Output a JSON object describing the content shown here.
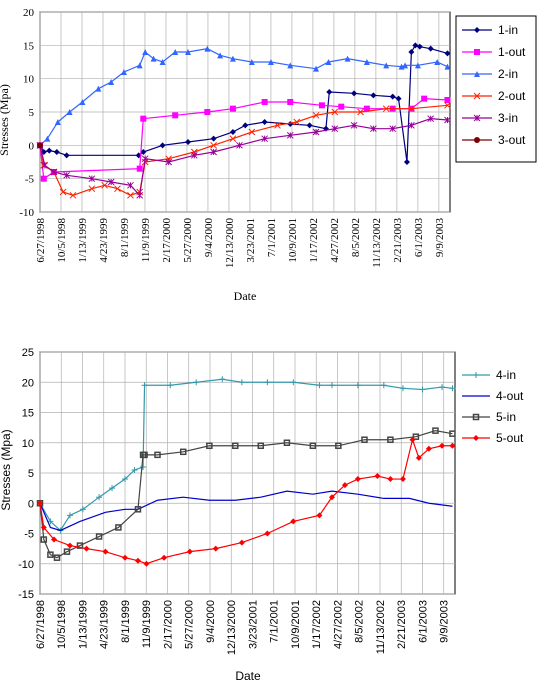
{
  "chart_data": [
    {
      "type": "line",
      "xlabel": "Date",
      "ylabel": "Stresses (Mpa)",
      "ylim": [
        -10,
        20
      ],
      "yticks": [
        -10,
        -5,
        0,
        5,
        10,
        15,
        20
      ],
      "xlim": [
        "1998-06-27",
        "2003-11-01"
      ],
      "xtick_labels": [
        "6/27/1998",
        "10/5/1998",
        "1/13/1999",
        "4/23/1999",
        "8/1/1999",
        "11/9/1999",
        "2/17/2000",
        "5/27/2000",
        "9/4/2000",
        "12/13/2000",
        "3/23/2001",
        "7/1/2001",
        "10/9/2001",
        "1/17/2002",
        "4/27/2002",
        "8/5/2002",
        "11/13/2002",
        "2/21/2003",
        "6/1/2003",
        "9/9/2003"
      ],
      "grid": true,
      "legend_position": "right",
      "series": [
        {
          "name": "1-in",
          "color": "#00007f",
          "marker": "diamond",
          "x": [
            "1998-06-27",
            "1998-07-15",
            "1998-08-10",
            "1998-09-15",
            "1998-11-01",
            "1999-10-10",
            "1999-11-01",
            "2000-02-01",
            "2000-06-01",
            "2000-10-01",
            "2001-01-01",
            "2001-03-01",
            "2001-06-01",
            "2001-10-01",
            "2002-01-01",
            "2002-03-20",
            "2002-04-05",
            "2002-08-01",
            "2002-11-01",
            "2003-02-01",
            "2003-03-01",
            "2003-04-10",
            "2003-05-01",
            "2003-05-20",
            "2003-06-10",
            "2003-08-01",
            "2003-10-20"
          ],
          "y": [
            0,
            -1,
            -0.8,
            -1,
            -1.5,
            -1.5,
            -1,
            0,
            0.5,
            1,
            2,
            3,
            3.5,
            3.2,
            3,
            2.5,
            8,
            7.8,
            7.5,
            7.3,
            7,
            -2.5,
            14,
            15,
            14.8,
            14.5,
            13.8
          ]
        },
        {
          "name": "1-out",
          "color": "#ff00ff",
          "marker": "square",
          "x": [
            "1998-06-27",
            "1998-07-15",
            "1998-09-01",
            "1999-10-15",
            "1999-11-01",
            "2000-04-01",
            "2000-09-01",
            "2001-01-01",
            "2001-06-01",
            "2001-10-01",
            "2002-03-01",
            "2002-06-01",
            "2002-10-01",
            "2003-02-01",
            "2003-05-01",
            "2003-07-01",
            "2003-10-20"
          ],
          "y": [
            0,
            -5,
            -4,
            -3.5,
            4,
            4.5,
            5,
            5.5,
            6.5,
            6.5,
            6,
            5.8,
            5.5,
            5.5,
            5.5,
            7,
            6.8
          ]
        },
        {
          "name": "2-in",
          "color": "#3366ff",
          "marker": "triangle",
          "x": [
            "1998-06-27",
            "1998-08-01",
            "1998-09-20",
            "1998-11-15",
            "1999-01-15",
            "1999-04-01",
            "1999-06-01",
            "1999-08-01",
            "1999-10-15",
            "1999-11-10",
            "1999-12-20",
            "2000-02-01",
            "2000-04-01",
            "2000-06-01",
            "2000-09-01",
            "2000-11-01",
            "2001-01-01",
            "2001-04-01",
            "2001-07-01",
            "2001-10-01",
            "2002-02-01",
            "2002-04-01",
            "2002-07-01",
            "2002-10-01",
            "2003-01-01",
            "2003-03-15",
            "2003-04-01",
            "2003-06-01",
            "2003-09-01",
            "2003-10-20"
          ],
          "y": [
            0,
            1,
            3.5,
            5,
            6.5,
            8.5,
            9.5,
            11,
            12,
            14,
            13,
            12.5,
            14,
            14,
            14.5,
            13.5,
            13,
            12.5,
            12.5,
            12,
            11.5,
            12.5,
            13,
            12.5,
            12,
            11.8,
            12,
            12,
            12.5,
            11.8
          ]
        },
        {
          "name": "2-out",
          "color": "#ff2200",
          "marker": "x",
          "x": [
            "1998-06-27",
            "1998-07-15",
            "1998-09-01",
            "1998-10-15",
            "1998-12-01",
            "1999-03-01",
            "1999-05-01",
            "1999-07-01",
            "1999-09-01",
            "1999-10-15",
            "1999-11-10",
            "2000-03-01",
            "2000-07-01",
            "2000-10-01",
            "2001-01-01",
            "2001-04-01",
            "2001-08-01",
            "2001-11-01",
            "2002-02-01",
            "2002-05-01",
            "2002-09-01",
            "2003-01-01",
            "2003-05-01",
            "2003-10-20"
          ],
          "y": [
            0,
            -3,
            -4,
            -7,
            -7.5,
            -6.5,
            -6,
            -6.5,
            -7.5,
            -7,
            -2.5,
            -2,
            -1,
            0,
            1,
            2,
            3,
            3.5,
            4.5,
            5,
            5,
            5.5,
            5.5,
            6
          ]
        },
        {
          "name": "3-in",
          "color": "#990099",
          "marker": "star",
          "x": [
            "1998-06-27",
            "1998-07-20",
            "1998-09-01",
            "1998-11-01",
            "1999-03-01",
            "1999-06-01",
            "1999-09-01",
            "1999-10-15",
            "1999-11-10",
            "2000-03-01",
            "2000-07-01",
            "2000-10-01",
            "2001-02-01",
            "2001-06-01",
            "2001-10-01",
            "2002-02-01",
            "2002-05-01",
            "2002-08-01",
            "2002-11-01",
            "2003-02-01",
            "2003-05-01",
            "2003-08-01",
            "2003-10-20"
          ],
          "y": [
            0,
            -3,
            -4,
            -4.5,
            -5,
            -5.5,
            -6,
            -7.5,
            -2,
            -2.5,
            -1.5,
            -1,
            0,
            1,
            1.5,
            2,
            2.5,
            3,
            2.5,
            2.5,
            3,
            4,
            3.8
          ]
        },
        {
          "name": "3-out",
          "color": "#7f0000",
          "marker": "circle",
          "x": [
            "1998-06-27"
          ],
          "y": [
            0
          ]
        }
      ]
    },
    {
      "type": "line",
      "xlabel": "Date",
      "ylabel": "Stresses (Mpa)",
      "ylim": [
        -15,
        25
      ],
      "yticks": [
        -15,
        -10,
        -5,
        0,
        5,
        10,
        15,
        20,
        25
      ],
      "xlim": [
        "1998-06-27",
        "2003-11-01"
      ],
      "xtick_labels": [
        "6/27/1998",
        "10/5/1998",
        "1/13/1999",
        "4/23/1999",
        "8/1/1999",
        "11/9/1999",
        "2/17/2000",
        "5/27/2000",
        "9/4/2000",
        "12/13/2000",
        "3/23/2001",
        "7/1/2001",
        "10/9/2001",
        "1/17/2002",
        "4/27/2002",
        "8/5/2002",
        "11/13/2002",
        "2/21/2003",
        "6/1/2003",
        "9/9/2003"
      ],
      "grid": true,
      "legend_position": "right",
      "series": [
        {
          "name": "4-in",
          "color": "#3399aa",
          "marker": "plus",
          "x": [
            "1998-06-27",
            "1998-08-15",
            "1998-10-01",
            "1998-11-15",
            "1999-01-15",
            "1999-04-01",
            "1999-06-01",
            "1999-08-01",
            "1999-09-15",
            "1999-10-25",
            "1999-11-01",
            "2000-03-01",
            "2000-07-01",
            "2000-11-01",
            "2001-02-01",
            "2001-06-01",
            "2001-10-01",
            "2002-02-01",
            "2002-04-01",
            "2002-08-01",
            "2002-12-01",
            "2003-03-01",
            "2003-06-01",
            "2003-09-01",
            "2003-10-20"
          ],
          "y": [
            0,
            -3,
            -4.5,
            -2,
            -1,
            1,
            2.5,
            4,
            5.5,
            6,
            19.5,
            19.5,
            20,
            20.5,
            20,
            20,
            20,
            19.5,
            19.5,
            19.5,
            19.5,
            19,
            18.8,
            19.2,
            19
          ]
        },
        {
          "name": "4-out",
          "color": "#0000cc",
          "marker": "none",
          "x": [
            "1998-06-27",
            "1998-08-15",
            "1998-10-01",
            "1999-01-01",
            "1999-05-01",
            "1999-08-01",
            "1999-10-01",
            "2000-01-01",
            "2000-05-01",
            "2000-09-01",
            "2001-01-01",
            "2001-05-01",
            "2001-09-01",
            "2002-01-01",
            "2002-04-01",
            "2002-08-01",
            "2002-12-01",
            "2003-04-01",
            "2003-07-01",
            "2003-10-20"
          ],
          "y": [
            0,
            -4,
            -4.5,
            -3,
            -1.5,
            -1,
            -1,
            0.5,
            1,
            0.5,
            0.5,
            1,
            2,
            1.5,
            2,
            1.5,
            0.8,
            0.8,
            0,
            -0.5
          ]
        },
        {
          "name": "5-in",
          "color": "#444444",
          "marker": "hash",
          "x": [
            "1998-06-27",
            "1998-07-15",
            "1998-08-15",
            "1998-09-15",
            "1998-11-01",
            "1999-01-01",
            "1999-04-01",
            "1999-07-01",
            "1999-10-01",
            "1999-10-25",
            "1999-11-01",
            "2000-01-01",
            "2000-05-01",
            "2000-09-01",
            "2001-01-01",
            "2001-05-01",
            "2001-09-01",
            "2002-01-01",
            "2002-05-01",
            "2002-09-01",
            "2003-01-01",
            "2003-05-01",
            "2003-08-01",
            "2003-10-20"
          ],
          "y": [
            0,
            -6,
            -8.5,
            -9,
            -8,
            -7,
            -5.5,
            -4,
            -1,
            8,
            8,
            8,
            8.5,
            9.5,
            9.5,
            9.5,
            10,
            9.5,
            9.5,
            10.5,
            10.5,
            11,
            12,
            11.5
          ]
        },
        {
          "name": "5-out",
          "color": "#ff0000",
          "marker": "diamond",
          "x": [
            "1998-06-27",
            "1998-07-15",
            "1998-09-01",
            "1998-11-15",
            "1999-02-01",
            "1999-05-01",
            "1999-08-01",
            "1999-10-01",
            "1999-11-10",
            "2000-02-01",
            "2000-06-01",
            "2000-10-01",
            "2001-02-01",
            "2001-06-01",
            "2001-10-01",
            "2002-02-01",
            "2002-04-01",
            "2002-06-01",
            "2002-08-01",
            "2002-11-01",
            "2003-01-01",
            "2003-03-01",
            "2003-04-15",
            "2003-05-15",
            "2003-07-01",
            "2003-09-01",
            "2003-10-20"
          ],
          "y": [
            0,
            -4,
            -6,
            -7,
            -7.5,
            -8,
            -9,
            -9.5,
            -10,
            -9,
            -8,
            -7.5,
            -6.5,
            -5,
            -3,
            -2,
            1,
            3,
            4,
            4.5,
            4,
            4,
            10.5,
            7.5,
            9,
            9.5,
            9.5
          ]
        }
      ]
    }
  ]
}
